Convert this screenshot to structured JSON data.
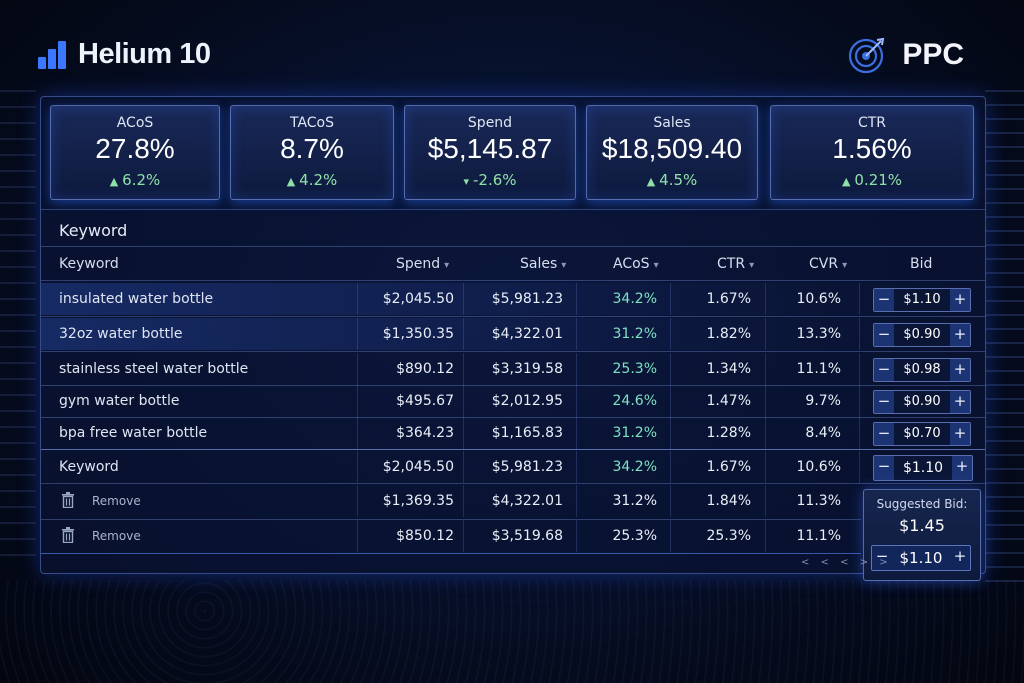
{
  "header": {
    "brand_name": "Helium 10",
    "page_label": "PPC"
  },
  "metrics": [
    {
      "label": "ACoS",
      "value": "27.8%",
      "delta": "6.2%",
      "direction": "up"
    },
    {
      "label": "TACoS",
      "value": "8.7%",
      "delta": "4.2%",
      "direction": "up"
    },
    {
      "label": "Spend",
      "value": "$5,145.87",
      "delta": "-2.6%",
      "direction": "down"
    },
    {
      "label": "Sales",
      "value": "$18,509.40",
      "delta": "4.5%",
      "direction": "up"
    },
    {
      "label": "CTR",
      "value": "1.56%",
      "delta": "0.21%",
      "direction": "up"
    }
  ],
  "table": {
    "section_title": "Keyword",
    "columns": {
      "keyword": "Keyword",
      "spend": "Spend",
      "sales": "Sales",
      "acos": "ACoS",
      "ctr": "CTR",
      "cvr": "CVR",
      "bid": "Bid"
    },
    "rows": [
      {
        "keyword": "insulated water bottle",
        "spend": "$2,045.50",
        "sales": "$5,981.23",
        "acos": "34.2%",
        "ctr": "1.67%",
        "cvr": "10.6%",
        "bid": "$1.10"
      },
      {
        "keyword": "32oz water bottle",
        "spend": "$1,350.35",
        "sales": "$4,322.01",
        "acos": "31.2%",
        "ctr": "1.82%",
        "cvr": "13.3%",
        "bid": "$0.90"
      },
      {
        "keyword": "stainless steel water bottle",
        "spend": "$890.12",
        "sales": "$3,319.58",
        "acos": "25.3%",
        "ctr": "1.34%",
        "cvr": "11.1%",
        "bid": "$0.98"
      },
      {
        "keyword": "gym water bottle",
        "spend": "$495.67",
        "sales": "$2,012.95",
        "acos": "24.6%",
        "ctr": "1.47%",
        "cvr": "9.7%",
        "bid": "$0.90"
      },
      {
        "keyword": "bpa free water bottle",
        "spend": "$364.23",
        "sales": "$1,165.83",
        "acos": "31.2%",
        "ctr": "1.28%",
        "cvr": "8.4%",
        "bid": "$0.70"
      }
    ],
    "summary_row": {
      "keyword": "Keyword",
      "spend": "$2,045.50",
      "sales": "$5,981.23",
      "acos": "34.2%",
      "ctr": "1.67%",
      "cvr": "10.6%",
      "bid": "$1.10"
    },
    "removed_rows": [
      {
        "action": "Remove",
        "spend": "$1,369.35",
        "sales": "$4,322.01",
        "acos": "31.2%",
        "ctr": "1.84%",
        "cvr": "11.3%"
      },
      {
        "action": "Remove",
        "spend": "$850.12",
        "sales": "$3,519.68",
        "acos": "25.3%",
        "ctr": "25.3%",
        "cvr": "11.1%"
      }
    ]
  },
  "suggested_bid": {
    "label": "Suggested Bid:",
    "value": "$1.45",
    "bid": "$1.10"
  },
  "pager": {
    "label": "< < < > >"
  },
  "stepper": {
    "minus": "−",
    "plus": "+"
  },
  "colors": {
    "accent": "#3b78ff",
    "positive": "#8fe0a8",
    "acos": "#7fe2c3"
  }
}
